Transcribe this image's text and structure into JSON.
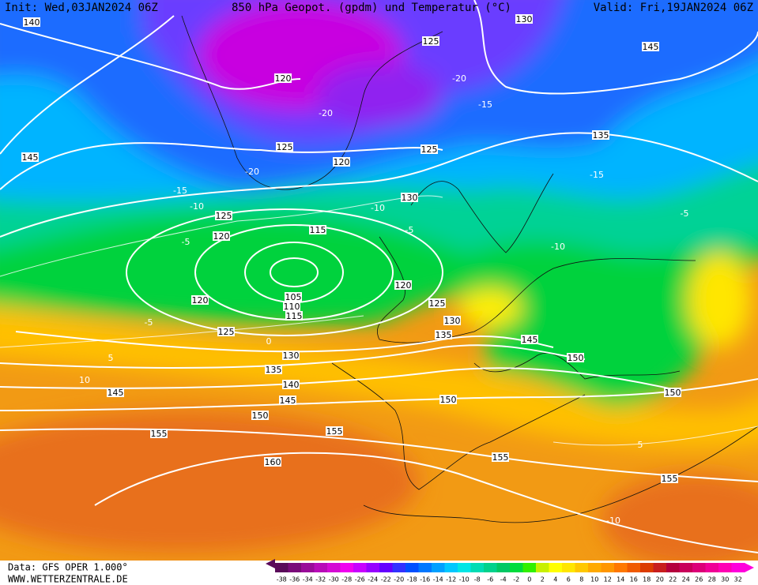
{
  "header": {
    "init": "Init: Wed,03JAN2024 06Z",
    "title": "850 hPa Geopot. (gpdm) und Temperatur (°C)",
    "valid": "Valid: Fri,19JAN2024 06Z"
  },
  "footer": {
    "data": "Data: GFS OPER 1.000°",
    "site": "WWW.WETTERZENTRALE.DE"
  },
  "geopotential_labels": [
    140,
    130,
    125,
    145,
    120,
    125,
    120,
    125,
    135,
    145,
    130,
    125,
    120,
    115,
    120,
    105,
    110,
    115,
    120,
    125,
    130,
    135,
    125,
    145,
    130,
    150,
    135,
    140,
    145,
    145,
    150,
    150,
    150,
    155,
    155,
    155,
    160,
    155
  ],
  "temperature_labels": [
    -20,
    -15,
    -20,
    -20,
    -15,
    -10,
    -10,
    -15,
    -10,
    -5,
    -5,
    -5,
    -5,
    0,
    5,
    10,
    5,
    -10
  ],
  "colorbar": {
    "ticks": [
      -38,
      -36,
      -34,
      -32,
      -30,
      -28,
      -26,
      -24,
      -22,
      -20,
      -18,
      -16,
      -14,
      -12,
      -10,
      -8,
      -6,
      -4,
      -2,
      0,
      2,
      4,
      6,
      8,
      10,
      12,
      14,
      16,
      18,
      20,
      22,
      24,
      26,
      28,
      30,
      32
    ],
    "colors": [
      "#5a0a5a",
      "#7a0a7a",
      "#990a99",
      "#b80ab8",
      "#d40ad4",
      "#f000f0",
      "#c800ff",
      "#9600ff",
      "#6400ff",
      "#3232ff",
      "#0050ff",
      "#0078ff",
      "#00a0ff",
      "#00c8ff",
      "#00e6e6",
      "#00dcb4",
      "#00d28c",
      "#00c864",
      "#00dc3c",
      "#32f000",
      "#c8f000",
      "#ffff00",
      "#ffe600",
      "#ffc800",
      "#ffaa00",
      "#ff9600",
      "#ff7800",
      "#f05a00",
      "#dc3c00",
      "#c81e1e",
      "#b4003c",
      "#c8005a",
      "#dc0078",
      "#f00096",
      "#ff00b4",
      "#ff00dc"
    ]
  }
}
